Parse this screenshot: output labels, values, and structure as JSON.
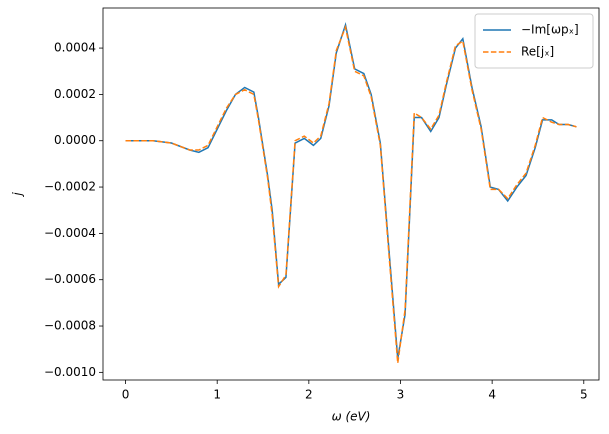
{
  "chart_data": {
    "type": "line",
    "xlabel": "ω (eV)",
    "ylabel": "j",
    "xlim": [
      -0.246,
      5.166
    ],
    "ylim": [
      -0.001033,
      0.000573
    ],
    "xticks": [
      0,
      1,
      2,
      3,
      4,
      5
    ],
    "yticks": [
      {
        "value": -0.001,
        "label": "−0.0010"
      },
      {
        "value": -0.0008,
        "label": "−0.0008"
      },
      {
        "value": -0.0006,
        "label": "−0.0006"
      },
      {
        "value": -0.0004,
        "label": "−0.0004"
      },
      {
        "value": -0.0002,
        "label": "−0.0002"
      },
      {
        "value": 0,
        "label": "0.0000"
      },
      0.0002,
      0.0004
    ],
    "grid": false,
    "legend": "upper right",
    "x": [
      0,
      0.3,
      0.5,
      0.7,
      0.8,
      0.9,
      1.0,
      1.1,
      1.2,
      1.3,
      1.4,
      1.45,
      1.55,
      1.6,
      1.67,
      1.75,
      1.85,
      1.95,
      2.05,
      2.13,
      2.22,
      2.3,
      2.4,
      2.5,
      2.6,
      2.68,
      2.78,
      2.88,
      2.97,
      3.05,
      3.15,
      3.23,
      3.33,
      3.42,
      3.5,
      3.6,
      3.68,
      3.78,
      3.88,
      3.98,
      4.07,
      4.17,
      4.27,
      4.37,
      4.47,
      4.55,
      4.65,
      4.73,
      4.83,
      4.92
    ],
    "series": [
      {
        "name": "−Im[ωpₓ]",
        "color": "#1f77b4",
        "style": "solid",
        "values": [
          0,
          0,
          -1e-05,
          -4e-05,
          -5e-05,
          -3e-05,
          5e-05,
          0.00013,
          0.0002,
          0.00023,
          0.00021,
          0.0001,
          -0.00015,
          -0.0003,
          -0.00062,
          -0.00059,
          -1e-05,
          1e-05,
          -2e-05,
          1e-05,
          0.00015,
          0.00038,
          0.0005,
          0.00031,
          0.00029,
          0.0002,
          -1e-05,
          -0.0005,
          -0.00094,
          -0.00075,
          0.0001,
          0.0001,
          4e-05,
          0.0001,
          0.00024,
          0.0004,
          0.00044,
          0.00023,
          6e-05,
          -0.0002,
          -0.00021,
          -0.00026,
          -0.0002,
          -0.00015,
          -3e-05,
          9e-05,
          9e-05,
          7e-05,
          7e-05,
          6e-05
        ]
      },
      {
        "name": "Re[jₓ]",
        "color": "#ff7f0e",
        "style": "dashed",
        "values": [
          0,
          0,
          -1e-05,
          -4e-05,
          -4e-05,
          -2e-05,
          6e-05,
          0.00014,
          0.0002,
          0.00022,
          0.0002,
          9e-05,
          -0.00016,
          -0.00032,
          -0.00063,
          -0.00058,
          0,
          2e-05,
          -1e-05,
          2e-05,
          0.00016,
          0.00039,
          0.00049,
          0.0003,
          0.00028,
          0.00019,
          -2e-05,
          -0.00052,
          -0.00096,
          -0.00073,
          0.00012,
          0.0001,
          5e-05,
          0.00011,
          0.00025,
          0.00041,
          0.00043,
          0.00022,
          5e-05,
          -0.00021,
          -0.00021,
          -0.00025,
          -0.00019,
          -0.00014,
          -2e-05,
          0.0001,
          8e-05,
          7e-05,
          7e-05,
          6e-05
        ]
      }
    ]
  }
}
